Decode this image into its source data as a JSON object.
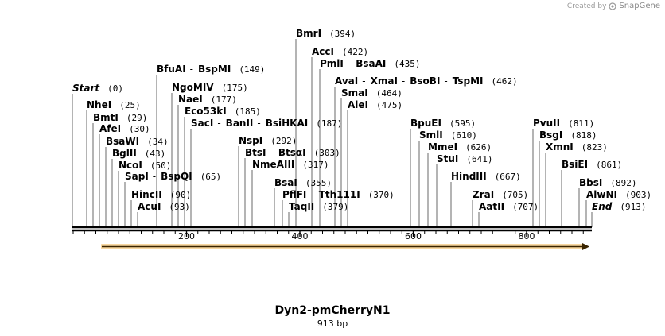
{
  "credit": {
    "created_by": "Created by",
    "brand": "SnapGene"
  },
  "map": {
    "name": "Dyn2-pmCherryN1",
    "length_label": "913 bp",
    "length_bp": 913
  },
  "axis": {
    "ticks": [
      {
        "value": 200,
        "label": "200"
      },
      {
        "value": 400,
        "label": "400"
      },
      {
        "value": 600,
        "label": "600"
      },
      {
        "value": 800,
        "label": "800"
      }
    ]
  },
  "feature": {
    "type": "arrow",
    "direction": "forward",
    "color": "#f0a830"
  },
  "sites": [
    {
      "names": [
        "Start"
      ],
      "pos": "(0)",
      "bp": 0,
      "italic": true
    },
    {
      "names": [
        "NheI"
      ],
      "pos": "(25)",
      "bp": 25
    },
    {
      "names": [
        "BmtI"
      ],
      "pos": "(29)",
      "bp": 29
    },
    {
      "names": [
        "AfeI"
      ],
      "pos": "(30)",
      "bp": 30
    },
    {
      "names": [
        "BsaWI"
      ],
      "pos": "(34)",
      "bp": 34
    },
    {
      "names": [
        "BglII"
      ],
      "pos": "(43)",
      "bp": 43
    },
    {
      "names": [
        "NcoI"
      ],
      "pos": "(50)",
      "bp": 50
    },
    {
      "names": [
        "SapI",
        "BspQI"
      ],
      "pos": "(65)",
      "bp": 65
    },
    {
      "names": [
        "HincII"
      ],
      "pos": "(90)",
      "bp": 90
    },
    {
      "names": [
        "AcuI"
      ],
      "pos": "(93)",
      "bp": 93
    },
    {
      "names": [
        "BfuAI",
        "BspMI"
      ],
      "pos": "(149)",
      "bp": 149
    },
    {
      "names": [
        "NgoMIV"
      ],
      "pos": "(175)",
      "bp": 175
    },
    {
      "names": [
        "NaeI"
      ],
      "pos": "(177)",
      "bp": 177
    },
    {
      "names": [
        "Eco53kI"
      ],
      "pos": "(185)",
      "bp": 185
    },
    {
      "names": [
        "SacI",
        "BanII",
        "BsiHKAI"
      ],
      "pos": "(187)",
      "bp": 187
    },
    {
      "names": [
        "BmrI"
      ],
      "pos": "(394)",
      "bp": 394
    },
    {
      "names": [
        "AccI"
      ],
      "pos": "(422)",
      "bp": 422
    },
    {
      "names": [
        "PmlI",
        "BsaAI"
      ],
      "pos": "(435)",
      "bp": 435
    },
    {
      "names": [
        "AvaI",
        "XmaI",
        "BsoBI",
        "TspMI"
      ],
      "pos": "(462)",
      "bp": 462
    },
    {
      "names": [
        "SmaI"
      ],
      "pos": "(464)",
      "bp": 464
    },
    {
      "names": [
        "AleI"
      ],
      "pos": "(475)",
      "bp": 475
    },
    {
      "names": [
        "NspI"
      ],
      "pos": "(292)",
      "bp": 292
    },
    {
      "names": [
        "BtsI",
        "BtsαI"
      ],
      "pos": "(303)",
      "bp": 303
    },
    {
      "names": [
        "NmeAIII"
      ],
      "pos": "(317)",
      "bp": 317
    },
    {
      "names": [
        "BsaI"
      ],
      "pos": "(355)",
      "bp": 355
    },
    {
      "names": [
        "PflFI",
        "Tth111I"
      ],
      "pos": "(370)",
      "bp": 370
    },
    {
      "names": [
        "TaqII"
      ],
      "pos": "(379)",
      "bp": 379
    },
    {
      "names": [
        "BpuEI"
      ],
      "pos": "(595)",
      "bp": 595
    },
    {
      "names": [
        "SmlI"
      ],
      "pos": "(610)",
      "bp": 610
    },
    {
      "names": [
        "MmeI"
      ],
      "pos": "(626)",
      "bp": 626
    },
    {
      "names": [
        "StuI"
      ],
      "pos": "(641)",
      "bp": 641
    },
    {
      "names": [
        "HindIII"
      ],
      "pos": "(667)",
      "bp": 667
    },
    {
      "names": [
        "ZraI"
      ],
      "pos": "(705)",
      "bp": 705
    },
    {
      "names": [
        "AatII"
      ],
      "pos": "(707)",
      "bp": 707
    },
    {
      "names": [
        "PvuII"
      ],
      "pos": "(811)",
      "bp": 811
    },
    {
      "names": [
        "BsgI"
      ],
      "pos": "(818)",
      "bp": 818
    },
    {
      "names": [
        "XmnI"
      ],
      "pos": "(823)",
      "bp": 823
    },
    {
      "names": [
        "BsiEI"
      ],
      "pos": "(861)",
      "bp": 861
    },
    {
      "names": [
        "BbsI"
      ],
      "pos": "(892)",
      "bp": 892
    },
    {
      "names": [
        "AlwNI"
      ],
      "pos": "(903)",
      "bp": 903
    },
    {
      "names": [
        "End"
      ],
      "pos": "(913)",
      "bp": 913,
      "italic": true
    }
  ]
}
